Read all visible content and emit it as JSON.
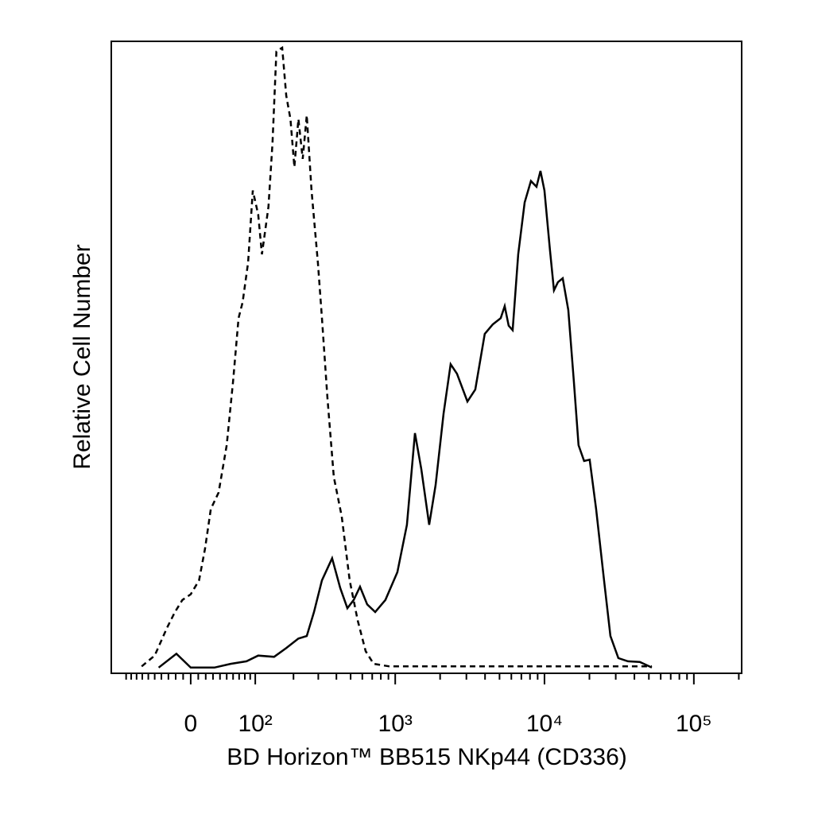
{
  "chart_data": {
    "type": "line",
    "xlabel": "BD Horizon™ BB515 NKp44 (CD336)",
    "ylabel": "Relative Cell Number",
    "xscale": "biexponential",
    "xlim": [
      -133,
      209000
    ],
    "xticks": [
      {
        "value": 0,
        "label": "0"
      },
      {
        "value": 100,
        "label": "10²"
      },
      {
        "value": 1000,
        "label": "10³"
      },
      {
        "value": 10000,
        "label": "10⁴"
      },
      {
        "value": 100000,
        "label": "10⁵"
      }
    ],
    "ylim": [
      0,
      100
    ],
    "series": [
      {
        "color": "#000000",
        "line_style": "dashed",
        "x": [
          -71,
          -50,
          -32,
          -21,
          -11,
          0,
          11,
          19,
          27,
          38,
          50,
          60,
          69,
          76,
          86,
          95,
          106,
          114,
          129,
          139,
          149,
          165,
          177,
          190,
          203,
          217,
          233,
          249,
          269,
          298,
          318,
          347,
          384,
          435,
          493,
          558,
          632,
          715,
          914,
          1321,
          3527,
          12000,
          52300
        ],
        "values": [
          1.1,
          2.8,
          7.2,
          9.7,
          11.6,
          12.5,
          14.7,
          19.7,
          26.0,
          28.6,
          36.1,
          46.2,
          56.2,
          58.7,
          65.0,
          76.4,
          72.6,
          66.3,
          73.8,
          83.9,
          98.4,
          99.0,
          91.4,
          87.7,
          80.1,
          87.7,
          81.4,
          88.3,
          76.4,
          65.0,
          56.2,
          43.6,
          31.1,
          24.8,
          14.7,
          8.4,
          3.5,
          1.5,
          1.1,
          1.1,
          1.1,
          1.1,
          1.1
        ]
      },
      {
        "color": "#000000",
        "line_style": "solid",
        "x": [
          -44,
          -19,
          0,
          32,
          56,
          83,
          106,
          143,
          177,
          217,
          249,
          280,
          318,
          374,
          425,
          475,
          524,
          579,
          647,
          733,
          859,
          1034,
          1198,
          1356,
          1496,
          1690,
          1865,
          2109,
          2354,
          2594,
          3047,
          3441,
          3980,
          4503,
          5093,
          5418,
          5761,
          6120,
          6668,
          7362,
          8115,
          8842,
          9399,
          9990,
          10888,
          11573,
          12309,
          13242,
          14432,
          15725,
          16915,
          18430,
          20082,
          22170,
          25064,
          27649,
          31244,
          36192,
          43485,
          52300
        ],
        "values": [
          0.9,
          3.1,
          0.9,
          0.9,
          1.5,
          1.9,
          2.8,
          2.6,
          4.0,
          5.5,
          5.9,
          9.7,
          14.7,
          18.2,
          13.5,
          10.3,
          11.6,
          13.7,
          10.9,
          9.7,
          11.6,
          16.0,
          23.5,
          38.0,
          32.3,
          23.5,
          29.8,
          41.1,
          48.9,
          47.4,
          43.0,
          44.9,
          53.7,
          55.2,
          56.2,
          58.1,
          55.0,
          54.3,
          66.3,
          74.5,
          77.9,
          77.0,
          79.5,
          76.4,
          66.9,
          60.6,
          61.9,
          62.5,
          57.5,
          46.2,
          36.1,
          33.6,
          33.8,
          26.0,
          14.7,
          5.9,
          2.4,
          1.9,
          1.8,
          0.9
        ]
      }
    ]
  }
}
